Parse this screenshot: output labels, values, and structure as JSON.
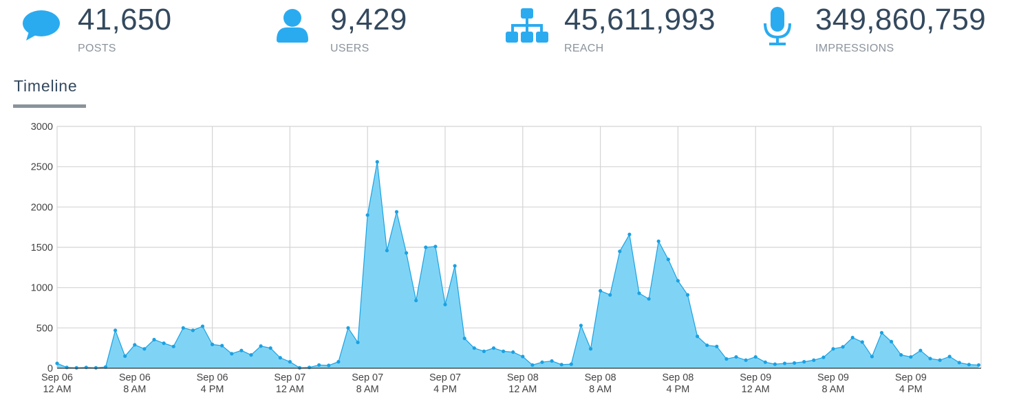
{
  "colors": {
    "accent": "#1ba1e2",
    "icon": "#2aabf0",
    "area_fill": "#7fd4f5",
    "text_dark": "#34495e",
    "text_muted": "#8a939c",
    "grid": "#d4d4d4"
  },
  "stats": [
    {
      "icon": "speech-bubble-icon",
      "value": "41,650",
      "label": "POSTS"
    },
    {
      "icon": "user-icon",
      "value": "9,429",
      "label": "USERS"
    },
    {
      "icon": "sitemap-icon",
      "value": "45,611,993",
      "label": "REACH"
    },
    {
      "icon": "microphone-icon",
      "value": "349,860,759",
      "label": "IMPRESSIONS"
    }
  ],
  "section": {
    "title": "Timeline"
  },
  "chart_data": {
    "type": "area",
    "title": "",
    "xlabel": "",
    "ylabel": "",
    "grid": true,
    "ylim": [
      0,
      3000
    ],
    "yticks": [
      0,
      500,
      1000,
      1500,
      2000,
      2500,
      3000
    ],
    "x_tick_labels": [
      [
        "Sep 06",
        "12 AM"
      ],
      [
        "Sep 06",
        "8 AM"
      ],
      [
        "Sep 06",
        "4 PM"
      ],
      [
        "Sep 07",
        "12 AM"
      ],
      [
        "Sep 07",
        "8 AM"
      ],
      [
        "Sep 07",
        "4 PM"
      ],
      [
        "Sep 08",
        "12 AM"
      ],
      [
        "Sep 08",
        "8 AM"
      ],
      [
        "Sep 08",
        "4 PM"
      ],
      [
        "Sep 09",
        "12 AM"
      ],
      [
        "Sep 09",
        "8 AM"
      ],
      [
        "Sep 09",
        "4 PM"
      ]
    ],
    "hours_per_point": 1,
    "values": [
      60,
      10,
      5,
      10,
      5,
      15,
      470,
      150,
      290,
      240,
      355,
      310,
      270,
      500,
      470,
      520,
      295,
      280,
      180,
      220,
      165,
      275,
      250,
      130,
      80,
      5,
      10,
      40,
      35,
      80,
      500,
      320,
      1900,
      2560,
      1460,
      1940,
      1430,
      840,
      1500,
      1510,
      790,
      1270,
      370,
      250,
      210,
      250,
      210,
      200,
      145,
      40,
      75,
      90,
      45,
      50,
      530,
      240,
      960,
      910,
      1450,
      1660,
      930,
      860,
      1575,
      1350,
      1085,
      910,
      395,
      285,
      270,
      115,
      140,
      100,
      140,
      75,
      50,
      60,
      65,
      80,
      100,
      135,
      240,
      265,
      380,
      325,
      145,
      440,
      330,
      165,
      140,
      220,
      120,
      100,
      145,
      70,
      45,
      40
    ]
  }
}
